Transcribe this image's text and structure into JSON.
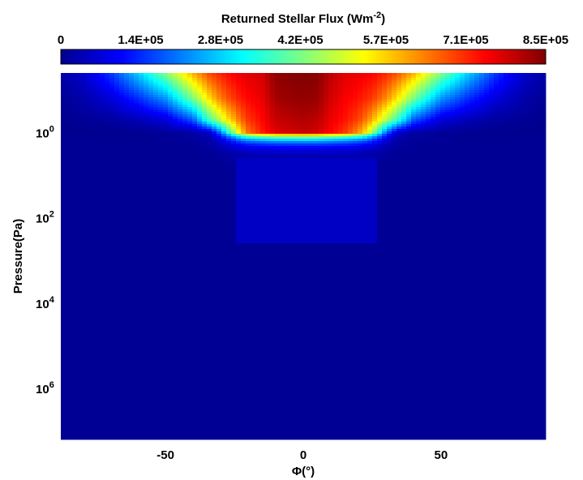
{
  "chart_data": {
    "type": "heatmap",
    "colorbar": {
      "title": "Returned Stellar Flux (Wm",
      "title_exp": "-2",
      "title_close": ")",
      "min": 0,
      "max": 850000,
      "tick_labels": [
        "0",
        "1.4E+05",
        "2.8E+05",
        "4.2E+05",
        "5.7E+05",
        "7.1E+05",
        "8.5E+05"
      ],
      "tick_values": [
        0,
        140000,
        280000,
        420000,
        570000,
        710000,
        850000
      ],
      "colormap": "jet",
      "placement": "top"
    },
    "xlabel": "Φ(°)",
    "ylabel": "Pressure(Pa)",
    "xlim": [
      -88,
      88
    ],
    "ylim_log10": [
      -1.4,
      7.2
    ],
    "y_scale": "log",
    "y_inverted": true,
    "x_ticks": [
      {
        "value": -50,
        "label": "-50"
      },
      {
        "value": 0,
        "label": "0"
      },
      {
        "value": 50,
        "label": "50"
      }
    ],
    "y_ticks": [
      {
        "value": 1,
        "base": "10",
        "exp": "0"
      },
      {
        "value": 100,
        "base": "10",
        "exp": "2"
      },
      {
        "value": 10000,
        "base": "10",
        "exp": "4"
      },
      {
        "value": 1000000,
        "base": "10",
        "exp": "6"
      }
    ],
    "grid": false,
    "background_value": 5000,
    "profiles": [
      {
        "phi": -88,
        "values": [
          22000,
          6000,
          0,
          0
        ]
      },
      {
        "phi": -80,
        "values": [
          60000,
          25000,
          6000,
          0
        ]
      },
      {
        "phi": -70,
        "values": [
          150000,
          70000,
          15000,
          0
        ]
      },
      {
        "phi": -60,
        "values": [
          280000,
          140000,
          40000,
          0
        ]
      },
      {
        "phi": -50,
        "values": [
          430000,
          230000,
          70000,
          10000
        ]
      },
      {
        "phi": -40,
        "values": [
          600000,
          420000,
          180000,
          20000
        ]
      },
      {
        "phi": -34,
        "values": [
          690000,
          560000,
          380000,
          60000
        ]
      },
      {
        "phi": -30,
        "values": [
          720000,
          640000,
          480000,
          200000
        ]
      },
      {
        "phi": -27,
        "values": [
          740000,
          680000,
          560000,
          360000
        ]
      },
      {
        "phi": -25,
        "values": [
          750000,
          700000,
          600000,
          450000
        ]
      },
      {
        "phi": -23,
        "values": [
          760000,
          720000,
          650000,
          550000
        ]
      },
      {
        "phi": -20,
        "values": [
          770000,
          740000,
          700000,
          650000
        ]
      },
      {
        "phi": -15,
        "values": [
          780000,
          760000,
          740000,
          720000
        ]
      },
      {
        "phi": -10,
        "values": [
          840000,
          820000,
          790000,
          770000
        ]
      },
      {
        "phi": -5,
        "values": [
          845000,
          830000,
          800000,
          780000
        ]
      },
      {
        "phi": 0,
        "values": [
          850000,
          835000,
          810000,
          790000
        ]
      },
      {
        "phi": 5,
        "values": [
          845000,
          830000,
          800000,
          780000
        ]
      },
      {
        "phi": 10,
        "values": [
          800000,
          780000,
          760000,
          740000
        ]
      },
      {
        "phi": 15,
        "values": [
          770000,
          750000,
          730000,
          700000
        ]
      },
      {
        "phi": 20,
        "values": [
          760000,
          730000,
          690000,
          620000
        ]
      },
      {
        "phi": 23,
        "values": [
          750000,
          710000,
          640000,
          540000
        ]
      },
      {
        "phi": 25,
        "values": [
          745000,
          700000,
          600000,
          450000
        ]
      },
      {
        "phi": 27,
        "values": [
          735000,
          670000,
          550000,
          360000
        ]
      },
      {
        "phi": 30,
        "values": [
          715000,
          630000,
          470000,
          200000
        ]
      },
      {
        "phi": 34,
        "values": [
          680000,
          550000,
          370000,
          60000
        ]
      },
      {
        "phi": 40,
        "values": [
          600000,
          420000,
          180000,
          20000
        ]
      },
      {
        "phi": 50,
        "values": [
          430000,
          230000,
          70000,
          10000
        ]
      },
      {
        "phi": 60,
        "values": [
          280000,
          140000,
          40000,
          0
        ]
      },
      {
        "phi": 70,
        "values": [
          150000,
          70000,
          15000,
          0
        ]
      },
      {
        "phi": 80,
        "values": [
          60000,
          25000,
          6000,
          0
        ]
      },
      {
        "phi": 88,
        "values": [
          22000,
          6000,
          0,
          0
        ]
      }
    ],
    "profile_log10p": [
      -1.4,
      -0.8,
      -0.3,
      0.0
    ],
    "deep_layer": {
      "phi_range": [
        -25,
        26
      ],
      "log10p_top": 0.6,
      "log10p_bottom": 2.6,
      "value": 50000
    }
  }
}
